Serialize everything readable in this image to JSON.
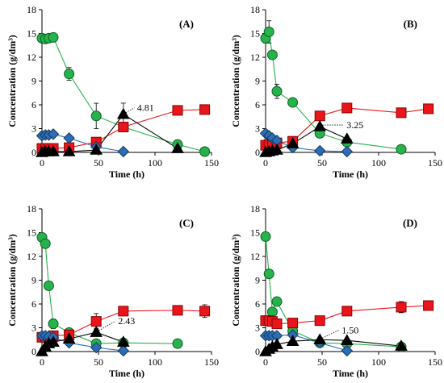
{
  "colors": {
    "glucose": "#27b34b",
    "glucose_edge": "#0d5f24",
    "red": "#e8161b",
    "red_edge": "#8b0000",
    "blue": "#2d6db5",
    "blue_edge": "#13375e",
    "black": "#000000",
    "line_glucose": "#27b34b",
    "line_red": "#e8161b",
    "line_blue": "#2d6db5",
    "line_black": "#000000"
  },
  "chart_data": [
    {
      "type": "line",
      "panel": "(A)",
      "ylabel": "Concentration (g/dm³)",
      "xlabel": "Time (h)",
      "xlim": [
        0,
        150
      ],
      "ylim": [
        0,
        18
      ],
      "xticks": [
        "0",
        "50",
        "100",
        "150"
      ],
      "yticks": [
        "0",
        "3",
        "6",
        "9",
        "12",
        "15",
        "18"
      ],
      "annotation": {
        "text": "4.81",
        "x": 72,
        "y": 4.81
      },
      "series": [
        {
          "marker": "circle",
          "x": [
            0,
            3,
            6,
            10,
            24,
            48,
            72,
            120,
            144
          ],
          "y": [
            14.4,
            14.3,
            14.4,
            14.5,
            9.9,
            4.6,
            3.2,
            1.0,
            0.1
          ],
          "err": [
            0.4,
            0.4,
            0.4,
            0.4,
            0.8,
            1.6,
            0.5,
            0.3,
            0
          ]
        },
        {
          "marker": "square",
          "x": [
            0,
            3,
            6,
            10,
            24,
            48,
            72,
            120,
            144
          ],
          "y": [
            0.5,
            0.5,
            0.5,
            0.5,
            0.6,
            1.3,
            3.2,
            5.3,
            5.4
          ],
          "err": [
            0,
            0,
            0,
            0,
            0,
            0,
            0.4,
            0,
            0
          ]
        },
        {
          "marker": "diamond",
          "x": [
            0,
            3,
            6,
            10,
            24,
            48,
            72
          ],
          "y": [
            2.1,
            2.2,
            2.2,
            2.3,
            1.8,
            0.7,
            0.1
          ],
          "err": [
            0,
            0,
            0,
            0,
            0,
            0,
            0
          ]
        },
        {
          "marker": "triangle",
          "x": [
            0,
            3,
            6,
            10,
            24,
            48,
            72,
            120
          ],
          "y": [
            0.0,
            0.1,
            0.1,
            0.1,
            0.1,
            0.3,
            4.81,
            0.5
          ],
          "err": [
            0,
            0,
            0,
            0,
            0,
            0,
            1.4,
            0
          ]
        }
      ]
    },
    {
      "type": "line",
      "panel": "(B)",
      "ylabel": "Concentration (g/dm³)",
      "xlabel": "Time (h)",
      "xlim": [
        0,
        150
      ],
      "ylim": [
        0,
        18
      ],
      "xticks": [
        "0",
        "50",
        "100",
        "150"
      ],
      "yticks": [
        "0",
        "3",
        "6",
        "9",
        "12",
        "15",
        "18"
      ],
      "annotation": {
        "text": "3.25",
        "x": 48,
        "y": 3.25
      },
      "series": [
        {
          "marker": "circle",
          "x": [
            0,
            3,
            6,
            10,
            24,
            48,
            72,
            120
          ],
          "y": [
            14.4,
            15.2,
            12.3,
            7.7,
            6.3,
            2.4,
            1.3,
            0.4
          ],
          "err": [
            0.6,
            1.4,
            0.4,
            0.9,
            0.3,
            0.5,
            0.2,
            0
          ]
        },
        {
          "marker": "square",
          "x": [
            0,
            3,
            6,
            10,
            24,
            48,
            72,
            120,
            144
          ],
          "y": [
            0.9,
            1.0,
            1.0,
            1.2,
            1.4,
            4.6,
            5.6,
            5.0,
            5.5
          ],
          "err": [
            0,
            0,
            0,
            0,
            0,
            0,
            0,
            0,
            0
          ]
        },
        {
          "marker": "diamond",
          "x": [
            0,
            3,
            6,
            10,
            24,
            48,
            72
          ],
          "y": [
            2.4,
            2.1,
            1.8,
            1.5,
            0.6,
            0.2,
            0.1
          ],
          "err": [
            0,
            0,
            0,
            0,
            0,
            0,
            0
          ]
        },
        {
          "marker": "triangle",
          "x": [
            0,
            3,
            6,
            10,
            24,
            48,
            72
          ],
          "y": [
            0.0,
            0.1,
            0.2,
            0.3,
            1.1,
            3.25,
            1.7
          ],
          "err": [
            0,
            0,
            0,
            0,
            0,
            0.9,
            0
          ]
        }
      ]
    },
    {
      "type": "line",
      "panel": "(C)",
      "ylabel": "Concentration (g/dm³)",
      "xlabel": "Time (h)",
      "xlim": [
        0,
        150
      ],
      "ylim": [
        0,
        18
      ],
      "xticks": [
        "0",
        "50",
        "100",
        "150"
      ],
      "yticks": [
        "0",
        "3",
        "6",
        "9",
        "12",
        "15",
        "18"
      ],
      "annotation": {
        "text": "2.43",
        "x": 48,
        "y": 2.43
      },
      "series": [
        {
          "marker": "circle",
          "x": [
            0,
            3,
            6,
            10,
            24,
            48,
            72,
            120
          ],
          "y": [
            14.4,
            13.6,
            8.3,
            3.5,
            2.4,
            1.0,
            1.1,
            1.0
          ],
          "err": [
            0,
            0,
            0,
            0.6,
            0.3,
            0.2,
            0.2,
            0
          ]
        },
        {
          "marker": "square",
          "x": [
            0,
            3,
            6,
            10,
            24,
            48,
            72,
            120,
            144
          ],
          "y": [
            1.8,
            1.8,
            1.8,
            2.0,
            2.1,
            3.8,
            5.1,
            5.2,
            5.1
          ],
          "err": [
            0,
            0,
            0,
            0,
            0,
            1.0,
            0.5,
            0.4,
            0.8
          ]
        },
        {
          "marker": "diamond",
          "x": [
            0,
            3,
            6,
            10,
            24,
            48,
            72
          ],
          "y": [
            2.0,
            2.0,
            1.9,
            1.8,
            1.1,
            0.5,
            0.1
          ],
          "err": [
            0,
            0,
            0,
            0,
            0,
            0,
            0
          ]
        },
        {
          "marker": "triangle",
          "x": [
            0,
            3,
            6,
            10,
            24,
            48,
            72
          ],
          "y": [
            0.0,
            0.6,
            1.0,
            1.2,
            1.6,
            2.43,
            1.2
          ],
          "err": [
            0,
            0,
            0,
            0,
            0,
            0.5,
            0
          ]
        }
      ]
    },
    {
      "type": "line",
      "panel": "(D)",
      "ylabel": "Concentration (g/dm³)",
      "xlabel": "Time (h)",
      "xlim": [
        0,
        150
      ],
      "ylim": [
        0,
        18
      ],
      "xticks": [
        "0",
        "50",
        "100",
        "150"
      ],
      "yticks": [
        "0",
        "3",
        "6",
        "9",
        "12",
        "15",
        "18"
      ],
      "annotation": {
        "text": "1.50",
        "x": 48,
        "y": 1.5
      },
      "series": [
        {
          "marker": "circle",
          "x": [
            0,
            3,
            6,
            10,
            24,
            48,
            72,
            120
          ],
          "y": [
            14.5,
            9.8,
            5.0,
            6.3,
            2.6,
            1.1,
            1.0,
            0.6
          ],
          "err": [
            0,
            0,
            0.4,
            0.5,
            0.4,
            0.3,
            0.2,
            0.1
          ]
        },
        {
          "marker": "square",
          "x": [
            0,
            3,
            6,
            10,
            24,
            48,
            72,
            120,
            144
          ],
          "y": [
            3.9,
            3.9,
            3.8,
            3.5,
            3.6,
            3.9,
            5.1,
            5.6,
            5.8
          ],
          "err": [
            0,
            0,
            0,
            0,
            0,
            0.3,
            0.5,
            0.7,
            0.3
          ]
        },
        {
          "marker": "diamond",
          "x": [
            0,
            3,
            6,
            10,
            24,
            48,
            72
          ],
          "y": [
            2.0,
            2.0,
            2.0,
            2.0,
            2.1,
            1.1,
            0.1
          ],
          "err": [
            0,
            0,
            0,
            0,
            0,
            0,
            0
          ]
        },
        {
          "marker": "triangle",
          "x": [
            0,
            3,
            6,
            10,
            24,
            48,
            72,
            120
          ],
          "y": [
            0.0,
            0.3,
            0.6,
            0.9,
            1.3,
            1.5,
            1.4,
            0.7
          ],
          "err": [
            0,
            0,
            0,
            0,
            0,
            0,
            0,
            0
          ]
        }
      ]
    }
  ]
}
